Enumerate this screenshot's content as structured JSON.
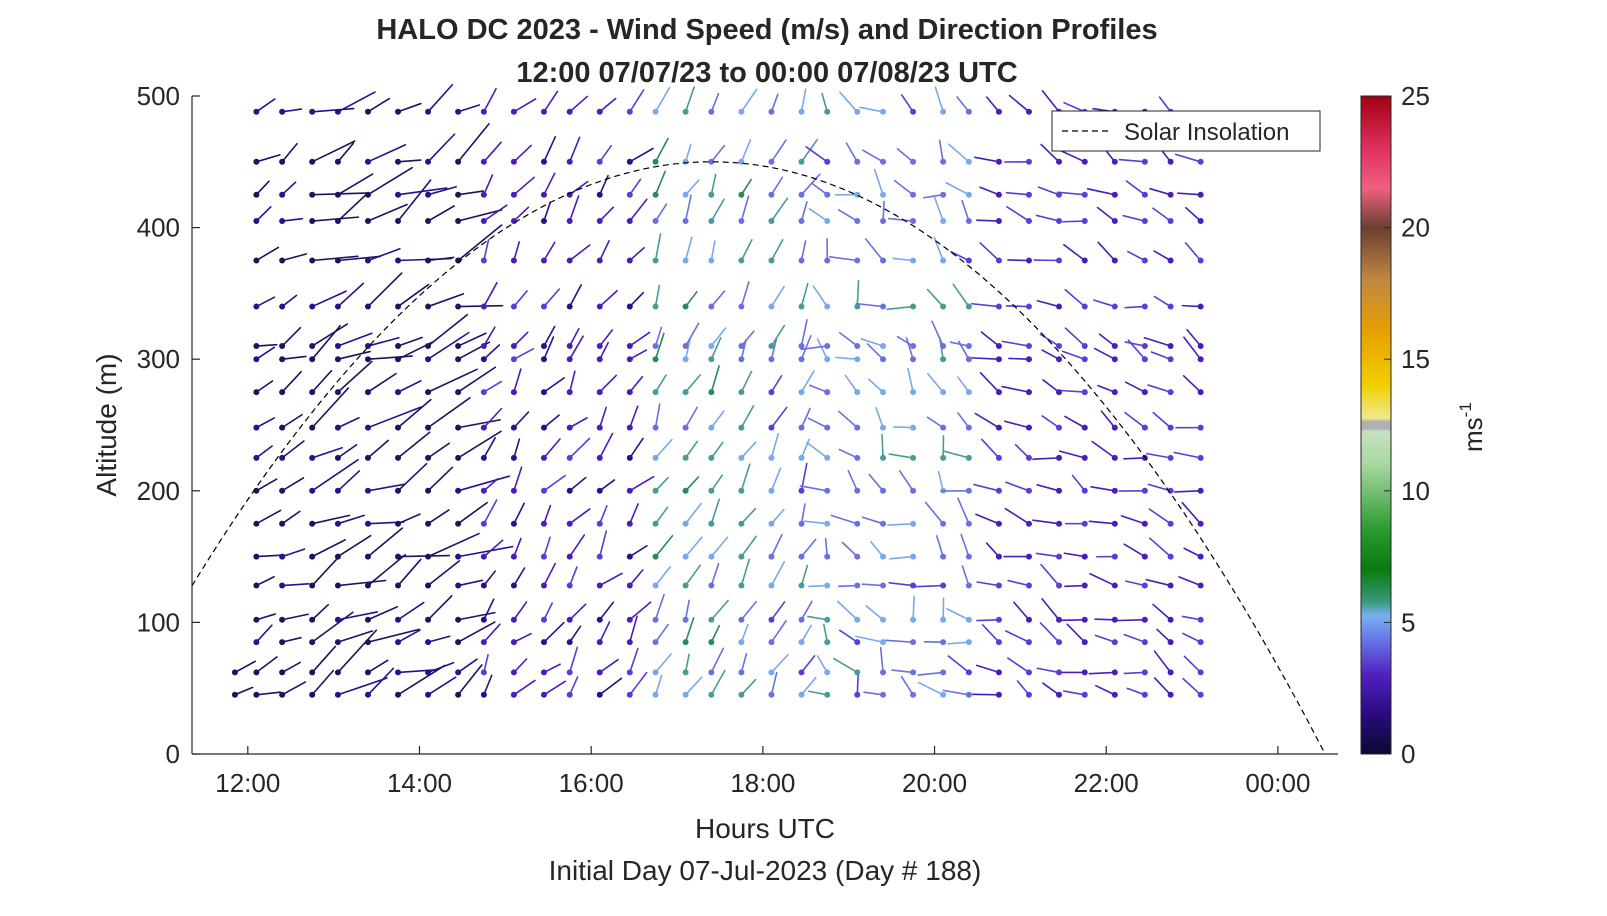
{
  "chart_data": {
    "type": "wind-barb-profile",
    "title": "HALO DC 2023 - Wind Speed (m/s) and Direction Profiles",
    "subtitle": "12:00 07/07/23 to 00:00 07/08/23  UTC",
    "xlabel": "Hours UTC",
    "ylabel": "Altitude (m)",
    "footer": "Initial Day 07-Jul-2023 (Day # 188)",
    "xlim_hours": [
      11.35,
      24.7
    ],
    "ylim": [
      0,
      500
    ],
    "x_ticks": [
      {
        "hour": 12,
        "label": "12:00"
      },
      {
        "hour": 14,
        "label": "14:00"
      },
      {
        "hour": 16,
        "label": "16:00"
      },
      {
        "hour": 18,
        "label": "18:00"
      },
      {
        "hour": 20,
        "label": "20:00"
      },
      {
        "hour": 22,
        "label": "22:00"
      },
      {
        "hour": 24,
        "label": "00:00"
      }
    ],
    "y_ticks": [
      0,
      100,
      200,
      300,
      400,
      500
    ],
    "legend": {
      "label": "Solar Insolation",
      "placement": "top-right",
      "line_style": "dashed"
    },
    "solar_insolation_curve": {
      "peak_hour": 17.4,
      "peak_altitude": 450,
      "zero_hour": 24.55
    },
    "colorbar": {
      "label": "ms",
      "label_superscript": "-1",
      "range": [
        0,
        25
      ],
      "ticks": [
        0,
        5,
        10,
        15,
        20,
        25
      ],
      "colormap": "speed-rainbow"
    },
    "profile_times_hours": [
      11.85,
      12.1,
      12.4,
      12.75,
      13.05,
      13.4,
      13.75,
      14.1,
      14.45,
      14.75,
      15.1,
      15.45,
      15.75,
      16.1,
      16.45,
      16.75,
      17.1,
      17.4,
      17.75,
      18.1,
      18.45,
      18.75,
      19.1,
      19.4,
      19.75,
      20.1,
      20.4,
      20.75,
      21.1,
      21.45,
      21.75,
      22.1,
      22.45,
      22.75,
      23.1
    ],
    "altitudes_m": [
      45,
      62,
      85,
      102,
      128,
      150,
      175,
      200,
      225,
      248,
      275,
      300,
      310,
      340,
      375,
      405,
      425,
      450,
      488
    ],
    "dominant_speed_by_period_ms": [
      {
        "from_hour": 11.85,
        "to_hour": 14.5,
        "speed": 1.0
      },
      {
        "from_hour": 14.5,
        "to_hour": 16.7,
        "speed": 2.5
      },
      {
        "from_hour": 16.7,
        "to_hour": 18.0,
        "speed": 5.0
      },
      {
        "from_hour": 18.0,
        "to_hour": 20.5,
        "speed": 4.5
      },
      {
        "from_hour": 20.5,
        "to_hour": 23.1,
        "speed": 3.0
      }
    ]
  },
  "colors": {
    "axis": "#262626",
    "curve": "#000000",
    "low_speed": "#191970",
    "mid_speed": "#5050d0",
    "high_speed": "#48a08a"
  }
}
